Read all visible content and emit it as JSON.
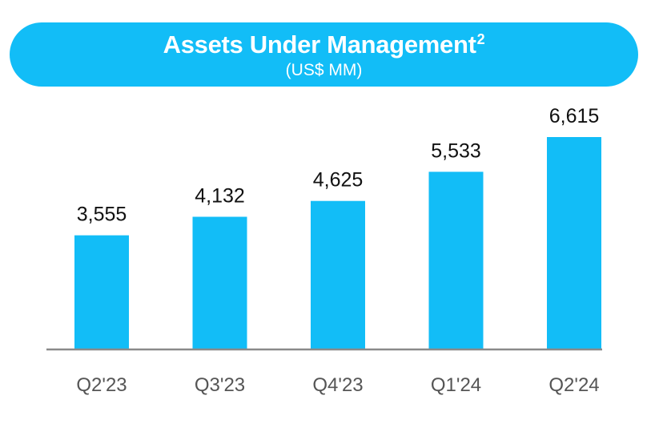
{
  "header": {
    "title": "Assets Under Management",
    "title_superscript": "2",
    "subtitle": "(US$ MM)"
  },
  "colors": {
    "accent": "#12bdf7",
    "bar": "#12bdf7",
    "axis": "#8a8a8a",
    "value_label": "#111111",
    "category_label": "#555555"
  },
  "chart_data": {
    "type": "bar",
    "title": "Assets Under Management",
    "subtitle": "(US$ MM)",
    "categories": [
      "Q2'23",
      "Q3'23",
      "Q4'23",
      "Q1'24",
      "Q2'24"
    ],
    "values": [
      3555,
      4132,
      4625,
      5533,
      6615
    ],
    "value_labels": [
      "3,555",
      "4,132",
      "4,625",
      "5,533",
      "6,615"
    ],
    "xlabel": "",
    "ylabel": "",
    "ylim": [
      0,
      6615
    ],
    "grid": false,
    "legend": "none"
  }
}
